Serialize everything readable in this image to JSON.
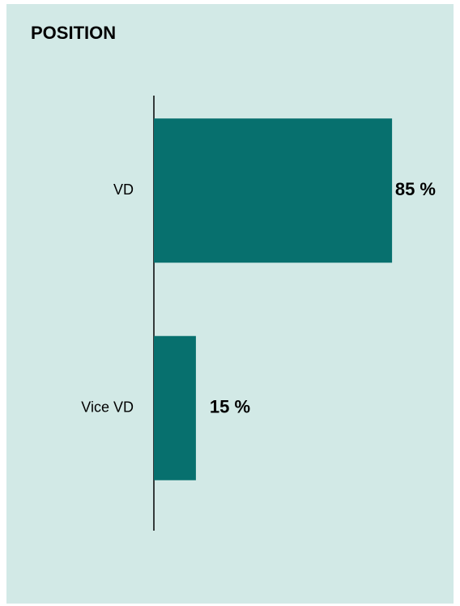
{
  "chart_data": {
    "type": "barh",
    "title": "POSITION",
    "categories": [
      "VD",
      "Vice VD"
    ],
    "values": [
      85,
      15
    ],
    "value_labels": [
      "85 %",
      "15 %"
    ],
    "color": "#07706e"
  }
}
